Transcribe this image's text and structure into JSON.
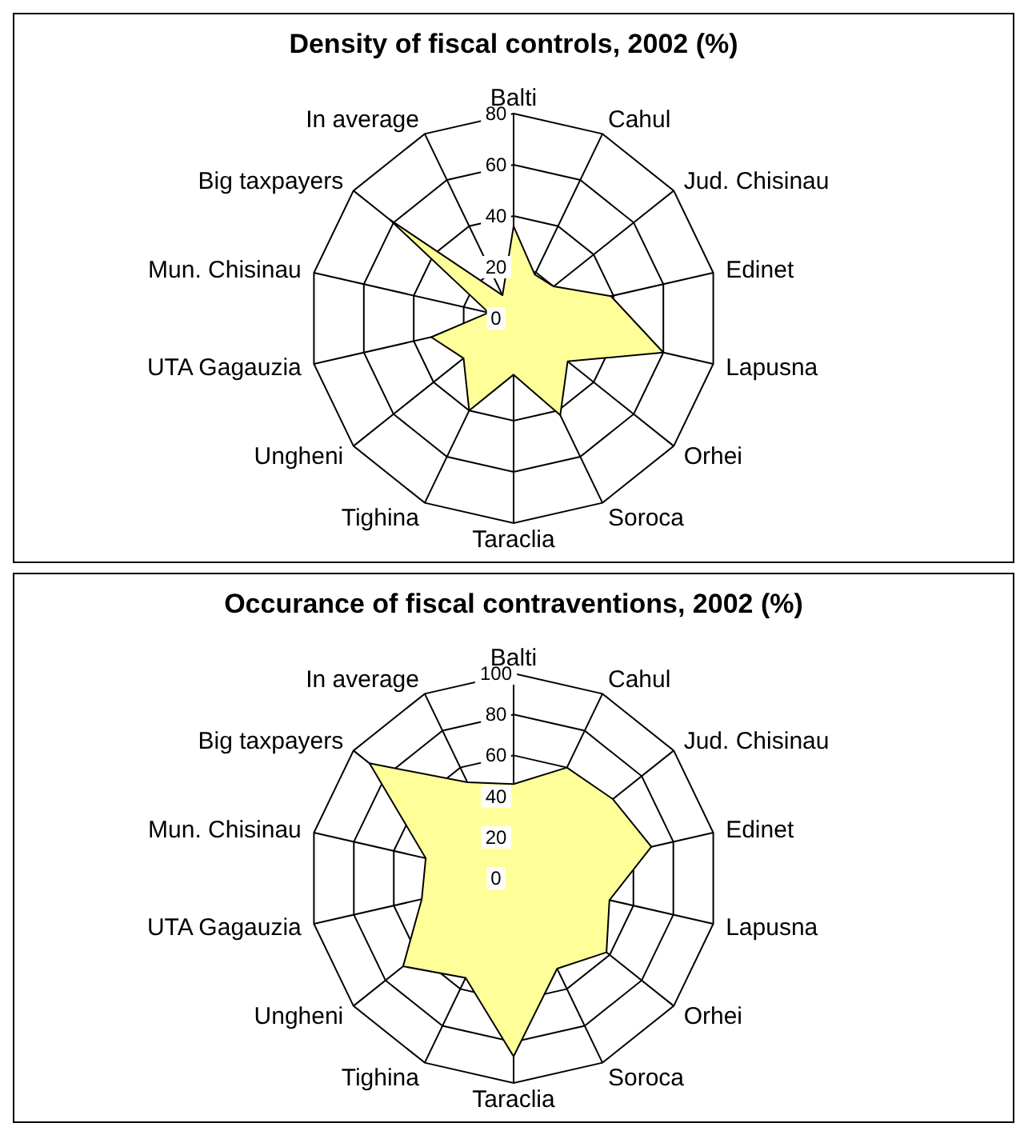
{
  "chart_data": [
    {
      "type": "radar",
      "title": "Density of fiscal controls, 2002 (%)",
      "categories": [
        "Balti",
        "Cahul",
        "Jud. Chisinau",
        "Edinet",
        "Lapusna",
        "Orhei",
        "Soroca",
        "Taraclia",
        "Tighina",
        "Ungheni",
        "UTA Gagauzia",
        "Mun. Chisinau",
        "Big taxpayers",
        "In average"
      ],
      "series": [
        {
          "color": "#ffff99",
          "values": [
            36,
            19,
            20,
            39,
            60,
            27,
            42,
            22,
            40,
            25,
            33,
            10,
            62,
            10
          ]
        }
      ],
      "ylim": [
        0,
        80
      ],
      "yticks": [
        0,
        20,
        40,
        60,
        80
      ],
      "grid": true
    },
    {
      "type": "radar",
      "title": "Occurance of fiscal contraventions, 2002 (%)",
      "categories": [
        "Balti",
        "Cahul",
        "Jud. Chisinau",
        "Edinet",
        "Lapusna",
        "Orhei",
        "Soroca",
        "Taraclia",
        "Tighina",
        "Ungheni",
        "UTA Gagauzia",
        "Mun. Chisinau",
        "Big taxpayers",
        "In average"
      ],
      "series": [
        {
          "color": "#ffff99",
          "values": [
            46,
            60,
            62,
            69,
            48,
            58,
            49,
            87,
            54,
            69,
            46,
            44,
            90,
            52
          ]
        }
      ],
      "ylim": [
        0,
        100
      ],
      "yticks": [
        0,
        20,
        40,
        60,
        80,
        100
      ],
      "grid": true
    }
  ]
}
